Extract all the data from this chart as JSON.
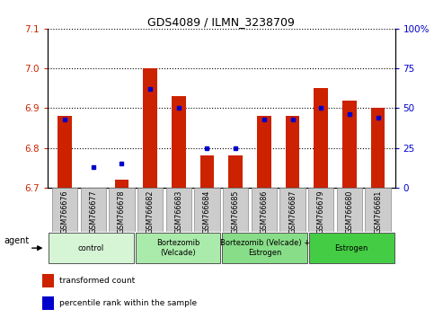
{
  "title": "GDS4089 / ILMN_3238709",
  "samples": [
    "GSM766676",
    "GSM766677",
    "GSM766678",
    "GSM766682",
    "GSM766683",
    "GSM766684",
    "GSM766685",
    "GSM766686",
    "GSM766687",
    "GSM766679",
    "GSM766680",
    "GSM766681"
  ],
  "red_values": [
    6.88,
    6.7,
    6.72,
    7.0,
    6.93,
    6.78,
    6.78,
    6.88,
    6.88,
    6.95,
    6.92,
    6.9
  ],
  "blue_values": [
    43,
    13,
    15,
    62,
    50,
    25,
    25,
    43,
    43,
    50,
    46,
    44
  ],
  "ylim_left": [
    6.7,
    7.1
  ],
  "ylim_right": [
    0,
    100
  ],
  "yticks_left": [
    6.7,
    6.8,
    6.9,
    7.0,
    7.1
  ],
  "ytick_labels_right": [
    "0",
    "25",
    "50",
    "75",
    "100%"
  ],
  "groups": [
    {
      "label": "control",
      "start": 0,
      "end": 3,
      "color": "#d5f5d5"
    },
    {
      "label": "Bortezomib\n(Velcade)",
      "start": 3,
      "end": 6,
      "color": "#aaeaaa"
    },
    {
      "label": "Bortezomib (Velcade) +\nEstrogen",
      "start": 6,
      "end": 9,
      "color": "#88dd88"
    },
    {
      "label": "Estrogen",
      "start": 9,
      "end": 12,
      "color": "#44cc44"
    }
  ],
  "agent_label": "agent",
  "red_color": "#cc2200",
  "blue_color": "#0000cc",
  "bar_width": 0.5,
  "legend_red": "transformed count",
  "legend_blue": "percentile rank within the sample",
  "background_color": "#ffffff",
  "base_value": 6.7,
  "grid_color": "#000000",
  "tick_bg_color": "#cccccc"
}
